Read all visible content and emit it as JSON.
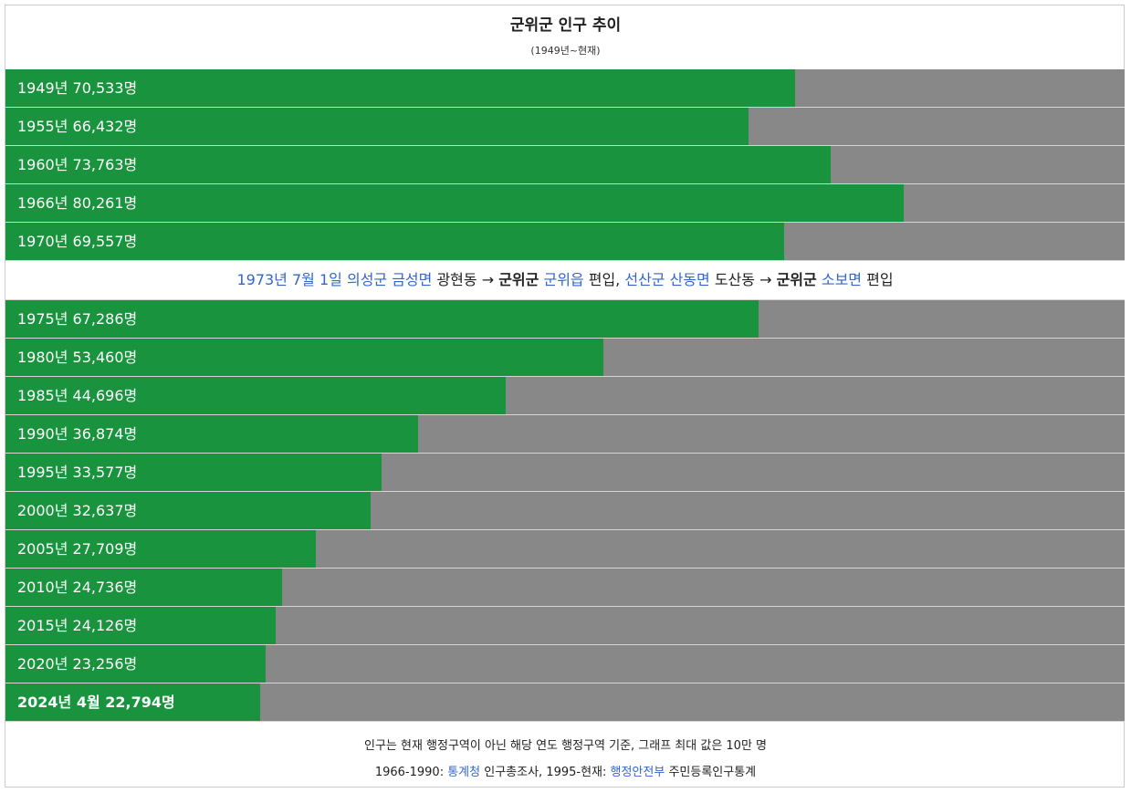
{
  "chart_data": {
    "type": "bar",
    "title": "군위군 인구 추이",
    "subtitle": "(1949년~현재)",
    "max_value": 100000,
    "colors": {
      "bar": "#1a933e",
      "track": "#888888",
      "link": "#3366cc"
    },
    "rows_before_note": [
      {
        "x": "1949",
        "value": 70533,
        "label": "1949년 70,533명"
      },
      {
        "x": "1955",
        "value": 66432,
        "label": "1955년 66,432명"
      },
      {
        "x": "1960",
        "value": 73763,
        "label": "1960년 73,763명"
      },
      {
        "x": "1966",
        "value": 80261,
        "label": "1966년 80,261명"
      },
      {
        "x": "1970",
        "value": 69557,
        "label": "1970년 69,557명"
      }
    ],
    "rows_after_note": [
      {
        "x": "1975",
        "value": 67286,
        "label": "1975년 67,286명"
      },
      {
        "x": "1980",
        "value": 53460,
        "label": "1980년 53,460명"
      },
      {
        "x": "1985",
        "value": 44696,
        "label": "1985년 44,696명"
      },
      {
        "x": "1990",
        "value": 36874,
        "label": "1990년 36,874명"
      },
      {
        "x": "1995",
        "value": 33577,
        "label": "1995년 33,577명"
      },
      {
        "x": "2000",
        "value": 32637,
        "label": "2000년 32,637명"
      },
      {
        "x": "2005",
        "value": 27709,
        "label": "2005년 27,709명"
      },
      {
        "x": "2010",
        "value": 24736,
        "label": "2010년 24,736명"
      },
      {
        "x": "2015",
        "value": 24126,
        "label": "2015년 24,126명"
      },
      {
        "x": "2020",
        "value": 23256,
        "label": "2020년 23,256명"
      },
      {
        "x": "2024-04",
        "value": 22794,
        "label": "2024년 4월 22,794명"
      }
    ],
    "annotation": {
      "date_link": "1973년 7월 1일",
      "part1_link": "의성군 금성면",
      "part2": " 광현동 → ",
      "part3_bold": "군위군",
      "part4_link": "군위읍",
      "part5": " 편입, ",
      "part6_link": "선산군 산동면",
      "part7": " 도산동 → ",
      "part8_bold": "군위군",
      "part9_link": "소보면",
      "part10": " 편입"
    },
    "footer": {
      "line1": "인구는 현재 행정구역이 아닌 해당 연도 행정구역 기준, 그래프 최대 값은 10만 명",
      "line2_prefix": "1966-1990: ",
      "line2_link1": "통계청",
      "line2_mid": " 인구총조사, 1995-현재: ",
      "line2_link2": "행정안전부",
      "line2_suffix": " 주민등록인구통계"
    }
  }
}
